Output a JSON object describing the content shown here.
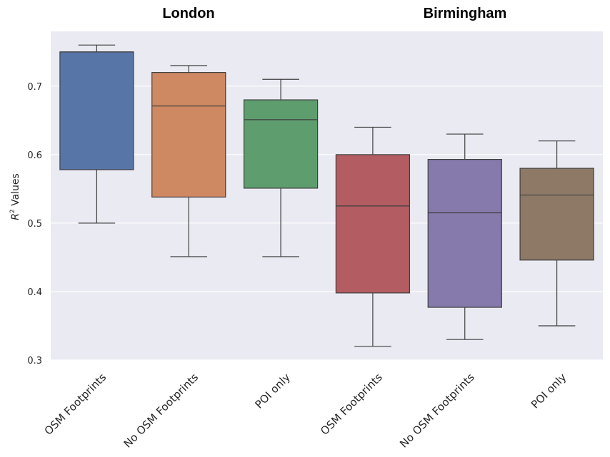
{
  "chart_data": {
    "type": "box",
    "group_titles": [
      "London",
      "Birmingham"
    ],
    "ylabel": {
      "base": "R",
      "superscript": "2",
      "rest": " Values"
    },
    "ylim": [
      0.3,
      0.78
    ],
    "yticks": [
      "0.3",
      "0.4",
      "0.5",
      "0.6",
      "0.7"
    ],
    "grid": true,
    "categories": [
      "OSM Footprints",
      "No OSM Footprints",
      "POI only",
      "OSM Footprints",
      "No OSM Footprints",
      "POI only"
    ],
    "boxes": [
      {
        "group": "London",
        "label": "OSM Footprints",
        "whisker_low": 0.5,
        "q1": 0.578,
        "median": 0.75,
        "q3": 0.75,
        "whisker_high": 0.76,
        "color": "#5775A7"
      },
      {
        "group": "London",
        "label": "No OSM Footprints",
        "whisker_low": 0.451,
        "q1": 0.538,
        "median": 0.671,
        "q3": 0.72,
        "whisker_high": 0.73,
        "color": "#CE8862"
      },
      {
        "group": "London",
        "label": "POI only",
        "whisker_low": 0.451,
        "q1": 0.551,
        "median": 0.651,
        "q3": 0.68,
        "whisker_high": 0.71,
        "color": "#5E9E6E"
      },
      {
        "group": "Birmingham",
        "label": "OSM Footprints",
        "whisker_low": 0.32,
        "q1": 0.398,
        "median": 0.525,
        "q3": 0.6,
        "whisker_high": 0.64,
        "color": "#B35D62"
      },
      {
        "group": "Birmingham",
        "label": "No OSM Footprints",
        "whisker_low": 0.33,
        "q1": 0.377,
        "median": 0.515,
        "q3": 0.593,
        "whisker_high": 0.63,
        "color": "#857AAB"
      },
      {
        "group": "Birmingham",
        "label": "POI only",
        "whisker_low": 0.35,
        "q1": 0.446,
        "median": 0.541,
        "q3": 0.58,
        "whisker_high": 0.62,
        "color": "#8D7966"
      }
    ]
  },
  "colors": {
    "plot_background": "#EAEAF2",
    "gridline": "#FFFFFF",
    "box_edge": "#3F3F3F"
  }
}
